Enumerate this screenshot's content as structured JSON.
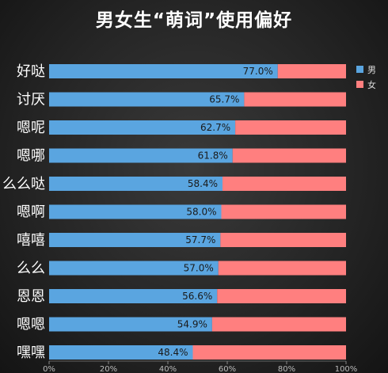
{
  "chart_data": {
    "type": "bar",
    "orientation": "horizontal",
    "stacked": true,
    "title": "男女生“萌词”使用偏好",
    "categories": [
      "好哒",
      "讨厌",
      "嗯呢",
      "嗯哪",
      "么么哒",
      "嗯啊",
      "嘻嘻",
      "么么",
      "恩恩",
      "嗯嗯",
      "嘿嘿"
    ],
    "series": [
      {
        "name": "男",
        "color": "#5aa5e0",
        "values": [
          77.0,
          65.7,
          62.7,
          61.8,
          58.4,
          58.0,
          57.7,
          57.0,
          56.6,
          54.9,
          48.4
        ]
      },
      {
        "name": "女",
        "color": "#ff7f7f",
        "values": [
          23.0,
          34.3,
          37.3,
          38.2,
          41.6,
          42.0,
          42.3,
          43.0,
          43.4,
          45.1,
          51.6
        ]
      }
    ],
    "data_labels": [
      "77.0%",
      "65.7%",
      "62.7%",
      "61.8%",
      "58.4%",
      "58.0%",
      "57.7%",
      "57.0%",
      "56.6%",
      "54.9%",
      "48.4%"
    ],
    "xlim": [
      0,
      100
    ],
    "x_ticks": [
      "0%",
      "20%",
      "40%",
      "60%",
      "80%",
      "100%"
    ],
    "legend_position": "right",
    "grid": false
  }
}
